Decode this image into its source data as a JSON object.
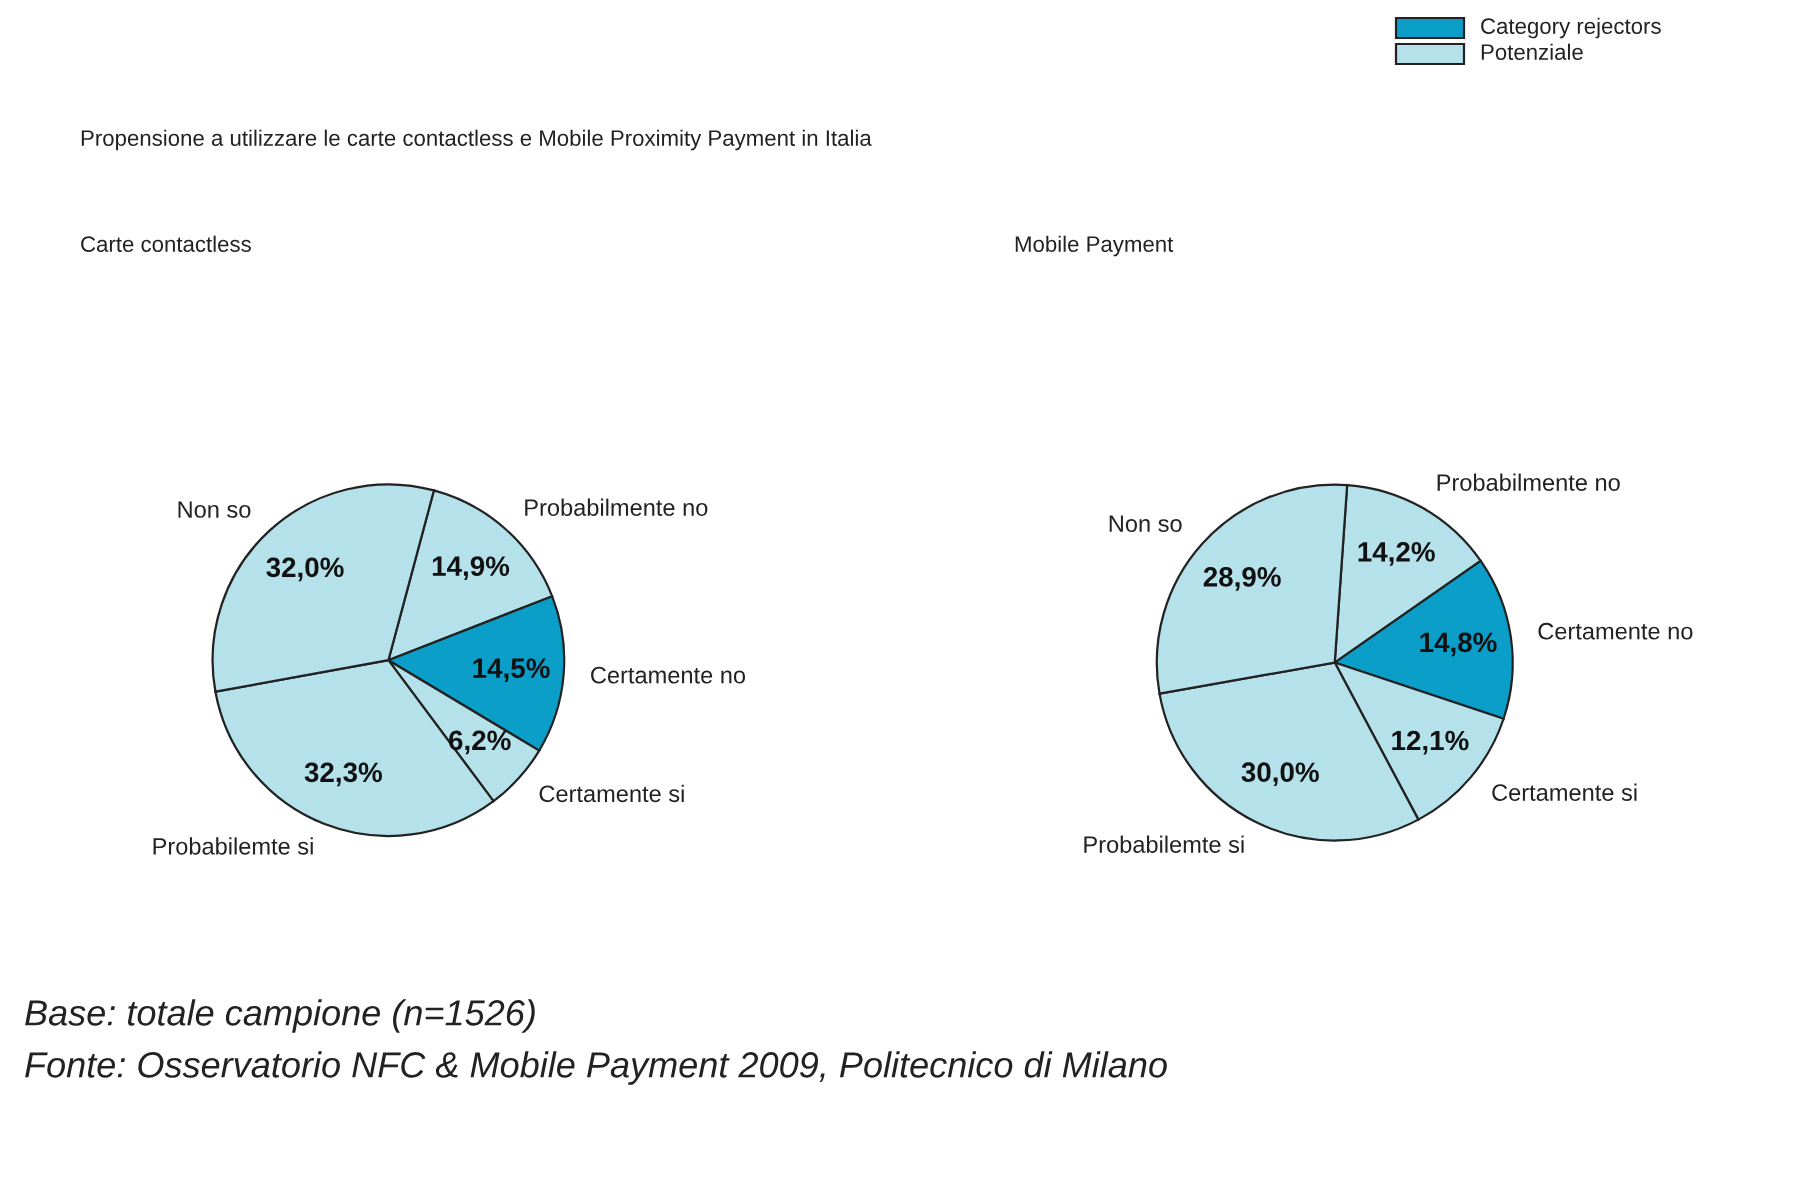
{
  "chart_data": [
    {
      "type": "pie",
      "title": "Propensione a utilizzare le carte contactless e Mobile Proximity Payment in Italia",
      "subtitle": "Carte contactless",
      "categories": [
        "Probabilmente no",
        "Certamente no",
        "Certamente si",
        "Probabilemte si",
        "Non so"
      ],
      "values": [
        14.9,
        14.5,
        6.2,
        32.3,
        32.0
      ],
      "value_labels": [
        "14,9%",
        "14,5%",
        "6,2%",
        "32,3%",
        "32,0%"
      ],
      "colors": [
        "#b5e1ea",
        "#0b9ec9",
        "#b5e1ea",
        "#b5e1ea",
        "#b5e1ea"
      ],
      "annotations": [
        "Category rejectors",
        "Potenziale",
        "Base: totale campione (n=1526)",
        "Fonte: Osservatorio NFC & Mobile Payment 2009, Politecnico di Milano"
      ]
    },
    {
      "type": "pie",
      "subtitle": "Mobile Payment",
      "categories": [
        "Probabilmente no",
        "Certamente no",
        "Certamente si",
        "Probabilemte si",
        "Non so"
      ],
      "values": [
        14.2,
        14.8,
        12.1,
        30.0,
        28.9
      ],
      "value_labels": [
        "14,2%",
        "14,8%",
        "12,1%",
        "30,0%",
        "28,9%"
      ],
      "colors": [
        "#b5e1ea",
        "#0b9ec9",
        "#b5e1ea",
        "#b5e1ea",
        "#b5e1ea"
      ]
    }
  ]
}
